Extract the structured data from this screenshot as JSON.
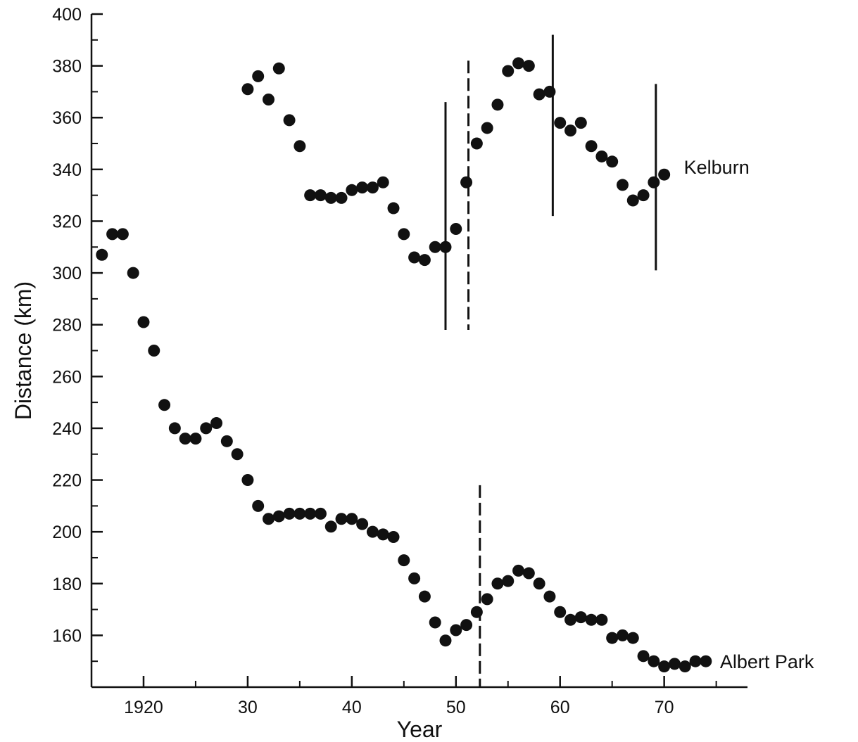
{
  "chart_data": {
    "type": "scatter",
    "title": "",
    "xlabel": "Year",
    "ylabel": "Distance (km)",
    "xlim": [
      1915,
      1978
    ],
    "ylim": [
      140,
      400
    ],
    "x_ticks": [
      1920,
      1930,
      1940,
      1950,
      1960,
      1970
    ],
    "x_tick_labels": [
      "1920",
      "30",
      "40",
      "50",
      "60",
      "70"
    ],
    "y_ticks": [
      160,
      180,
      200,
      220,
      240,
      260,
      280,
      300,
      320,
      340,
      360,
      380,
      400
    ],
    "y_tick_labels": [
      "160",
      "180",
      "200",
      "220",
      "240",
      "260",
      "280",
      "300",
      "320",
      "340",
      "360",
      "380",
      "400"
    ],
    "grid": false,
    "colors": {
      "ink": "#111111",
      "background": "#ffffff"
    },
    "series": [
      {
        "name": "Kelburn",
        "x": [
          1930,
          1931,
          1932,
          1933,
          1934,
          1935,
          1936,
          1937,
          1938,
          1939,
          1940,
          1941,
          1942,
          1943,
          1944,
          1945,
          1946,
          1947,
          1948,
          1949,
          1950,
          1951,
          1952,
          1953,
          1954,
          1955,
          1956,
          1957,
          1958,
          1959,
          1960,
          1961,
          1962,
          1963,
          1964,
          1965,
          1966,
          1967,
          1968,
          1969,
          1970
        ],
        "y": [
          371,
          376,
          367,
          379,
          359,
          349,
          330,
          330,
          329,
          329,
          332,
          333,
          333,
          335,
          325,
          315,
          306,
          305,
          310,
          310,
          317,
          335,
          350,
          356,
          365,
          378,
          381,
          380,
          369,
          370,
          358,
          355,
          358,
          349,
          345,
          343,
          334,
          328,
          330,
          335,
          338
        ]
      },
      {
        "name": "Albert Park",
        "x": [
          1916,
          1917,
          1918,
          1919,
          1920,
          1921,
          1922,
          1923,
          1924,
          1925,
          1926,
          1927,
          1928,
          1929,
          1930,
          1931,
          1932,
          1933,
          1934,
          1935,
          1936,
          1937,
          1938,
          1939,
          1940,
          1941,
          1942,
          1943,
          1944,
          1945,
          1946,
          1947,
          1948,
          1949,
          1950,
          1951,
          1952,
          1953,
          1954,
          1955,
          1956,
          1957,
          1958,
          1959,
          1960,
          1961,
          1962,
          1963,
          1964,
          1965,
          1966,
          1967,
          1968,
          1969,
          1970,
          1971,
          1972,
          1973,
          1974
        ],
        "y": [
          307,
          315,
          315,
          300,
          281,
          270,
          249,
          240,
          236,
          236,
          240,
          242,
          235,
          230,
          220,
          210,
          205,
          206,
          207,
          207,
          207,
          207,
          202,
          205,
          205,
          203,
          200,
          199,
          198,
          189,
          182,
          175,
          165,
          158,
          162,
          164,
          169,
          174,
          180,
          181,
          185,
          184,
          180,
          175,
          169,
          166,
          167,
          166,
          166,
          159,
          160,
          159,
          152,
          150,
          148,
          149,
          148,
          150,
          150
        ]
      }
    ],
    "vertical_markers": [
      {
        "series": "Kelburn",
        "x": 1949,
        "y_range": [
          278,
          366
        ],
        "style": "solid"
      },
      {
        "series": "Kelburn",
        "x": 1951.2,
        "y_range": [
          278,
          382
        ],
        "style": "dashed"
      },
      {
        "series": "Kelburn",
        "x": 1959.3,
        "y_range": [
          322,
          392
        ],
        "style": "solid"
      },
      {
        "series": "Kelburn",
        "x": 1969.2,
        "y_range": [
          301,
          373
        ],
        "style": "solid"
      },
      {
        "series": "Albert Park",
        "x": 1952.3,
        "y_range": [
          140,
          218
        ],
        "style": "dashed"
      }
    ]
  }
}
